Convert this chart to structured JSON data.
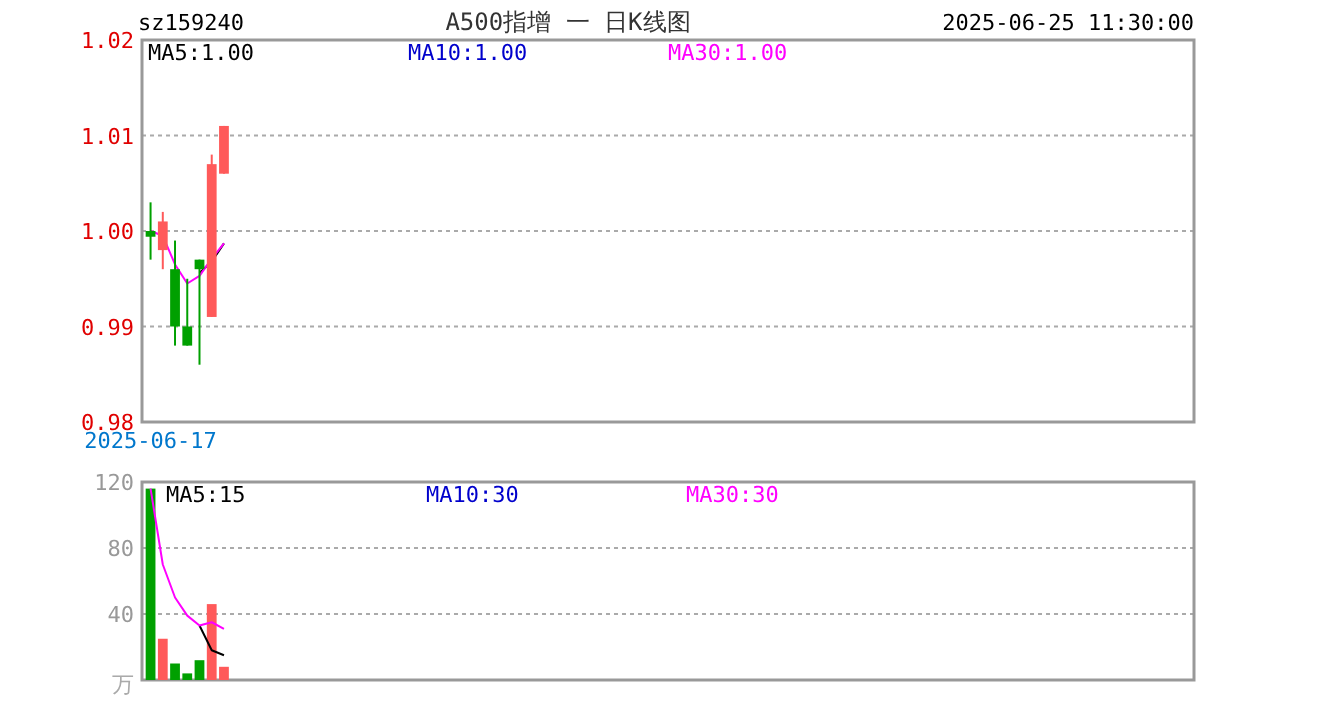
{
  "chart_data": [
    {
      "type": "candlestick",
      "annotations": [
        "sz159240",
        "A500指增 一 日K线图",
        "2025-06-25 11:30:00"
      ],
      "legend": "top",
      "categories": [
        "2025-06-17",
        null,
        null,
        null,
        null,
        null,
        null
      ],
      "ohlc": [
        [
          1.0,
          1.003,
          0.997,
          0.9994
        ],
        [
          0.998,
          1.002,
          0.996,
          1.001
        ],
        [
          0.996,
          0.999,
          0.988,
          0.99
        ],
        [
          0.99,
          0.995,
          0.988,
          0.988
        ],
        [
          0.997,
          0.997,
          0.986,
          0.996
        ],
        [
          0.991,
          1.008,
          0.991,
          1.007
        ],
        [
          1.006,
          1.011,
          1.006,
          1.011
        ]
      ],
      "colors": [
        "#00a000",
        "#ff5a5a",
        "#00a000",
        "#00a000",
        "#00a000",
        "#ff5a5a",
        "#ff5a5a"
      ],
      "series": [
        {
          "type": "line",
          "name": "MA5:1.00",
          "color": "#000000",
          "values": [
            null,
            null,
            null,
            null,
            0.9956,
            0.9968,
            0.9987
          ]
        },
        {
          "type": "line",
          "name": "MA10:1.00",
          "color": "#0000cc",
          "values": [
            null,
            null,
            null,
            null,
            null,
            null,
            null
          ]
        },
        {
          "type": "line",
          "name": "MA30:1.00",
          "color": "#ff00ff",
          "values": [
            1.0,
            0.9995,
            0.9965,
            0.9945,
            0.9953,
            0.9971,
            0.9987
          ]
        }
      ],
      "ylim": [
        0.98,
        1.02
      ],
      "yticks": [
        {
          "value": 0.98,
          "label": "0.98"
        },
        {
          "value": 0.99,
          "label": "0.99"
        },
        {
          "value": 1,
          "label": "1.00"
        },
        {
          "value": 1.01,
          "label": "1.01"
        },
        {
          "value": 1.02,
          "label": "1.02"
        }
      ],
      "grid": "y"
    },
    {
      "type": "bar",
      "ylabel": "万",
      "legend": "top",
      "categories": [
        null,
        null,
        null,
        null,
        null,
        null,
        null
      ],
      "series": [
        {
          "type": "bar",
          "values": [
            116,
            25,
            10,
            4,
            12,
            46,
            8
          ],
          "colors": [
            "#00a000",
            "#ff5a5a",
            "#00a000",
            "#00a000",
            "#00a000",
            "#ff5a5a",
            "#ff5a5a"
          ]
        },
        {
          "type": "line",
          "name": "MA5:15",
          "color": "#000000",
          "values": [
            null,
            null,
            null,
            null,
            33,
            18,
            15
          ]
        },
        {
          "type": "line",
          "name": "MA10:30",
          "color": "#0000cc",
          "values": [
            null,
            null,
            null,
            null,
            null,
            null,
            null
          ]
        },
        {
          "type": "line",
          "name": "MA30:30",
          "color": "#ff00ff",
          "values": [
            116,
            70,
            50,
            39,
            33,
            35,
            31
          ]
        }
      ],
      "ylim": [
        0,
        120
      ],
      "yticks": [
        40,
        80,
        120
      ],
      "grid": "y",
      "tick_labels": "y"
    }
  ]
}
